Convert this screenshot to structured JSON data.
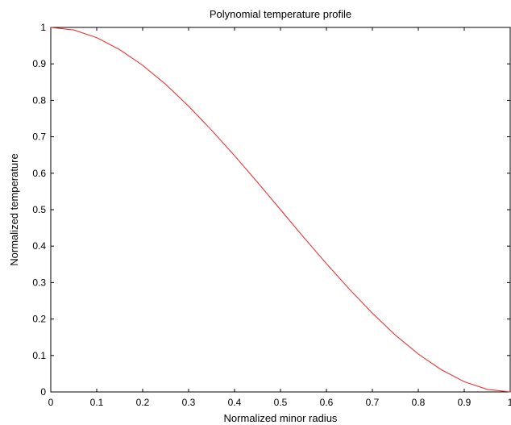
{
  "chart_data": {
    "type": "line",
    "title": "Polynomial temperature profile",
    "xlabel": "Normalized minor radius",
    "ylabel": "Normalized temperature",
    "xlim": [
      0,
      1
    ],
    "ylim": [
      0,
      1
    ],
    "x_ticks": [
      "0",
      "0.1",
      "0.2",
      "0.3",
      "0.4",
      "0.5",
      "0.6",
      "0.7",
      "0.8",
      "0.9",
      "1"
    ],
    "y_ticks": [
      "0",
      "0.1",
      "0.2",
      "0.3",
      "0.4",
      "0.5",
      "0.6",
      "0.7",
      "0.8",
      "0.9",
      "1"
    ],
    "grid": false,
    "series": [
      {
        "color": "#e8201e",
        "x": [
          0,
          0.05,
          0.1,
          0.15,
          0.2,
          0.25,
          0.3,
          0.35,
          0.4,
          0.45,
          0.5,
          0.55,
          0.6,
          0.65,
          0.7,
          0.75,
          0.8,
          0.85,
          0.9,
          0.95,
          1
        ],
        "y": [
          1,
          0.993,
          0.972,
          0.939,
          0.896,
          0.844,
          0.784,
          0.718,
          0.648,
          0.575,
          0.5,
          0.425,
          0.352,
          0.282,
          0.216,
          0.156,
          0.104,
          0.061,
          0.028,
          0.007,
          0
        ]
      }
    ]
  }
}
